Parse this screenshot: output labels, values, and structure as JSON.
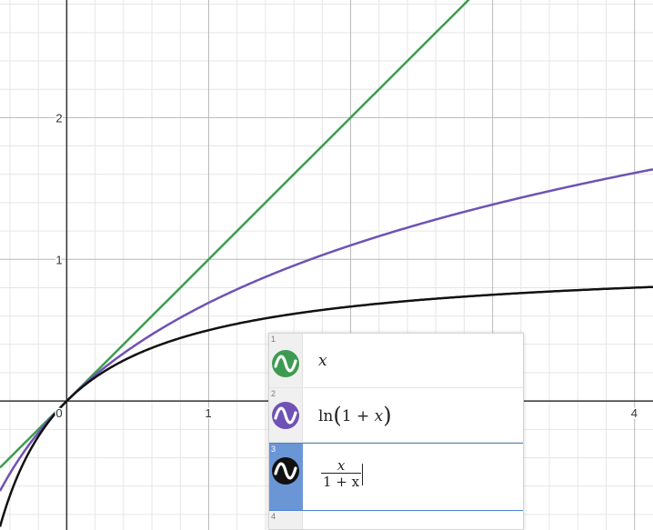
{
  "graph": {
    "x_range": [
      -0.47,
      4.13
    ],
    "y_range": [
      -0.91,
      2.83
    ],
    "major_step": 1,
    "minor_step": 0.2,
    "x_tick_labels": [
      {
        "value": 0,
        "text": "0"
      },
      {
        "value": 1,
        "text": "1"
      },
      {
        "value": 4,
        "text": "4"
      }
    ],
    "y_tick_labels": [
      {
        "value": 1,
        "text": "1"
      },
      {
        "value": 2,
        "text": "2"
      }
    ],
    "curves": [
      {
        "id": "x",
        "color": "#3d9b51"
      },
      {
        "id": "ln",
        "color": "#6f52b5"
      },
      {
        "id": "frac",
        "color": "#111111"
      }
    ]
  },
  "expressions": [
    {
      "number": "1",
      "color": "#3d9b51",
      "icon": "wave-icon",
      "var": "x"
    },
    {
      "number": "2",
      "color": "#6f52b5",
      "icon": "wave-icon",
      "fn": "ln",
      "open": "(",
      "one": "1",
      "plus": "+",
      "var": "x",
      "close": ")"
    },
    {
      "number": "3",
      "color": "#111111",
      "icon": "wave-icon",
      "numerator": "x",
      "denominator": "1 + x",
      "active": true
    },
    {
      "number": "4"
    }
  ]
}
